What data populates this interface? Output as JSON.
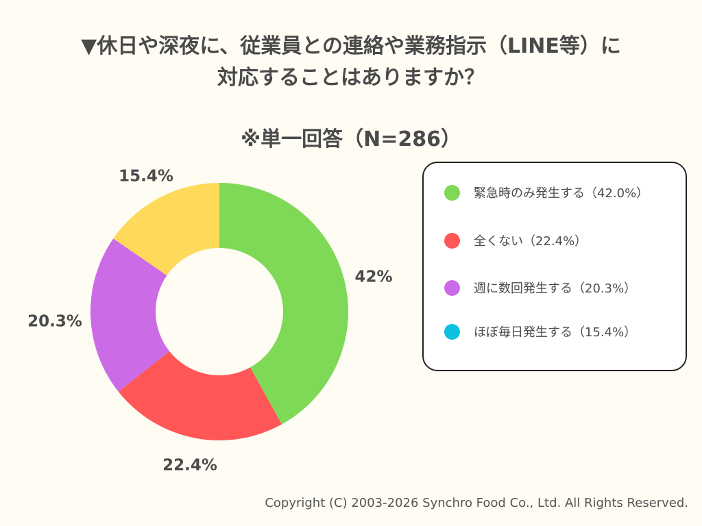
{
  "chart_data": {
    "type": "pie",
    "style": "donut",
    "title": "▼休日や深夜に、従業員との連絡や業務指示（LINE等）に対応することはありますか？",
    "title_lines": [
      "▼休日や深夜に、従業員との連絡や業務指示（LINE等）に",
      "対応することはありますか？"
    ],
    "subtitle": "※単一回答（N=286）",
    "categories": [
      "緊急時のみ発生する",
      "全くない",
      "週に数回発生する",
      "ほぼ毎日発生する"
    ],
    "values": [
      42.0,
      22.4,
      20.3,
      15.4
    ],
    "data_labels": [
      "42%",
      "22.4%",
      "20.3%",
      "15.4%"
    ],
    "slice_colors": [
      "#7ed957",
      "#ff5757",
      "#cb6ce6",
      "#ffd95a"
    ],
    "legend": {
      "placement": "right",
      "entries": [
        "緊急時のみ発生する（42.0%）",
        "全くない（22.4%）",
        "週に数回発生する（20.3%）",
        "ほぼ毎日発生する（15.4%）"
      ],
      "colors": [
        "#7ed957",
        "#ff5757",
        "#cb6ce6",
        "#0cc0df"
      ]
    }
  },
  "footer": {
    "copyright": "Copyright (C) 2003-2026  Synchro Food Co., Ltd. All Rights Reserved."
  }
}
